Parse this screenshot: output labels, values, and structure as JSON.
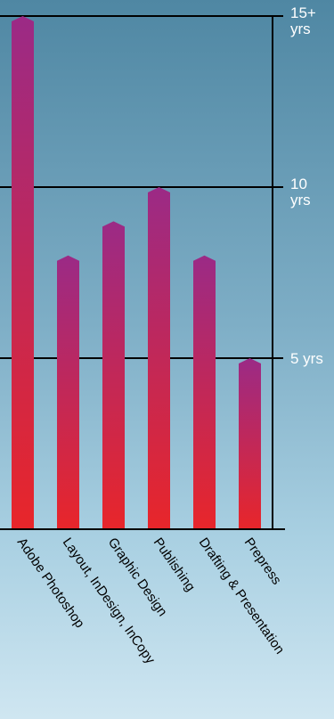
{
  "chart_data": {
    "type": "bar",
    "title": "",
    "xlabel": "",
    "ylabel": "",
    "categories": [
      "Adobe Photoshop",
      "Layout, InDesign, InCopy",
      "Graphic Design",
      "Publishing",
      "Drafting & Presentation",
      "Prepress"
    ],
    "values": [
      15,
      8,
      9,
      10,
      8,
      5
    ],
    "ylim": [
      0,
      15
    ],
    "y_ticks": [
      {
        "value": 15,
        "lines": [
          "15+",
          "yrs"
        ]
      },
      {
        "value": 10,
        "lines": [
          "10",
          "yrs"
        ]
      },
      {
        "value": 5,
        "lines": [
          "5 yrs"
        ]
      }
    ],
    "grid": true,
    "legend": "none",
    "colors": {
      "bar_top": "#9b2a86",
      "bar_bottom": "#e8262a",
      "grid": "#000000",
      "tick_text": "#ffffff",
      "label_text": "#000000"
    }
  }
}
